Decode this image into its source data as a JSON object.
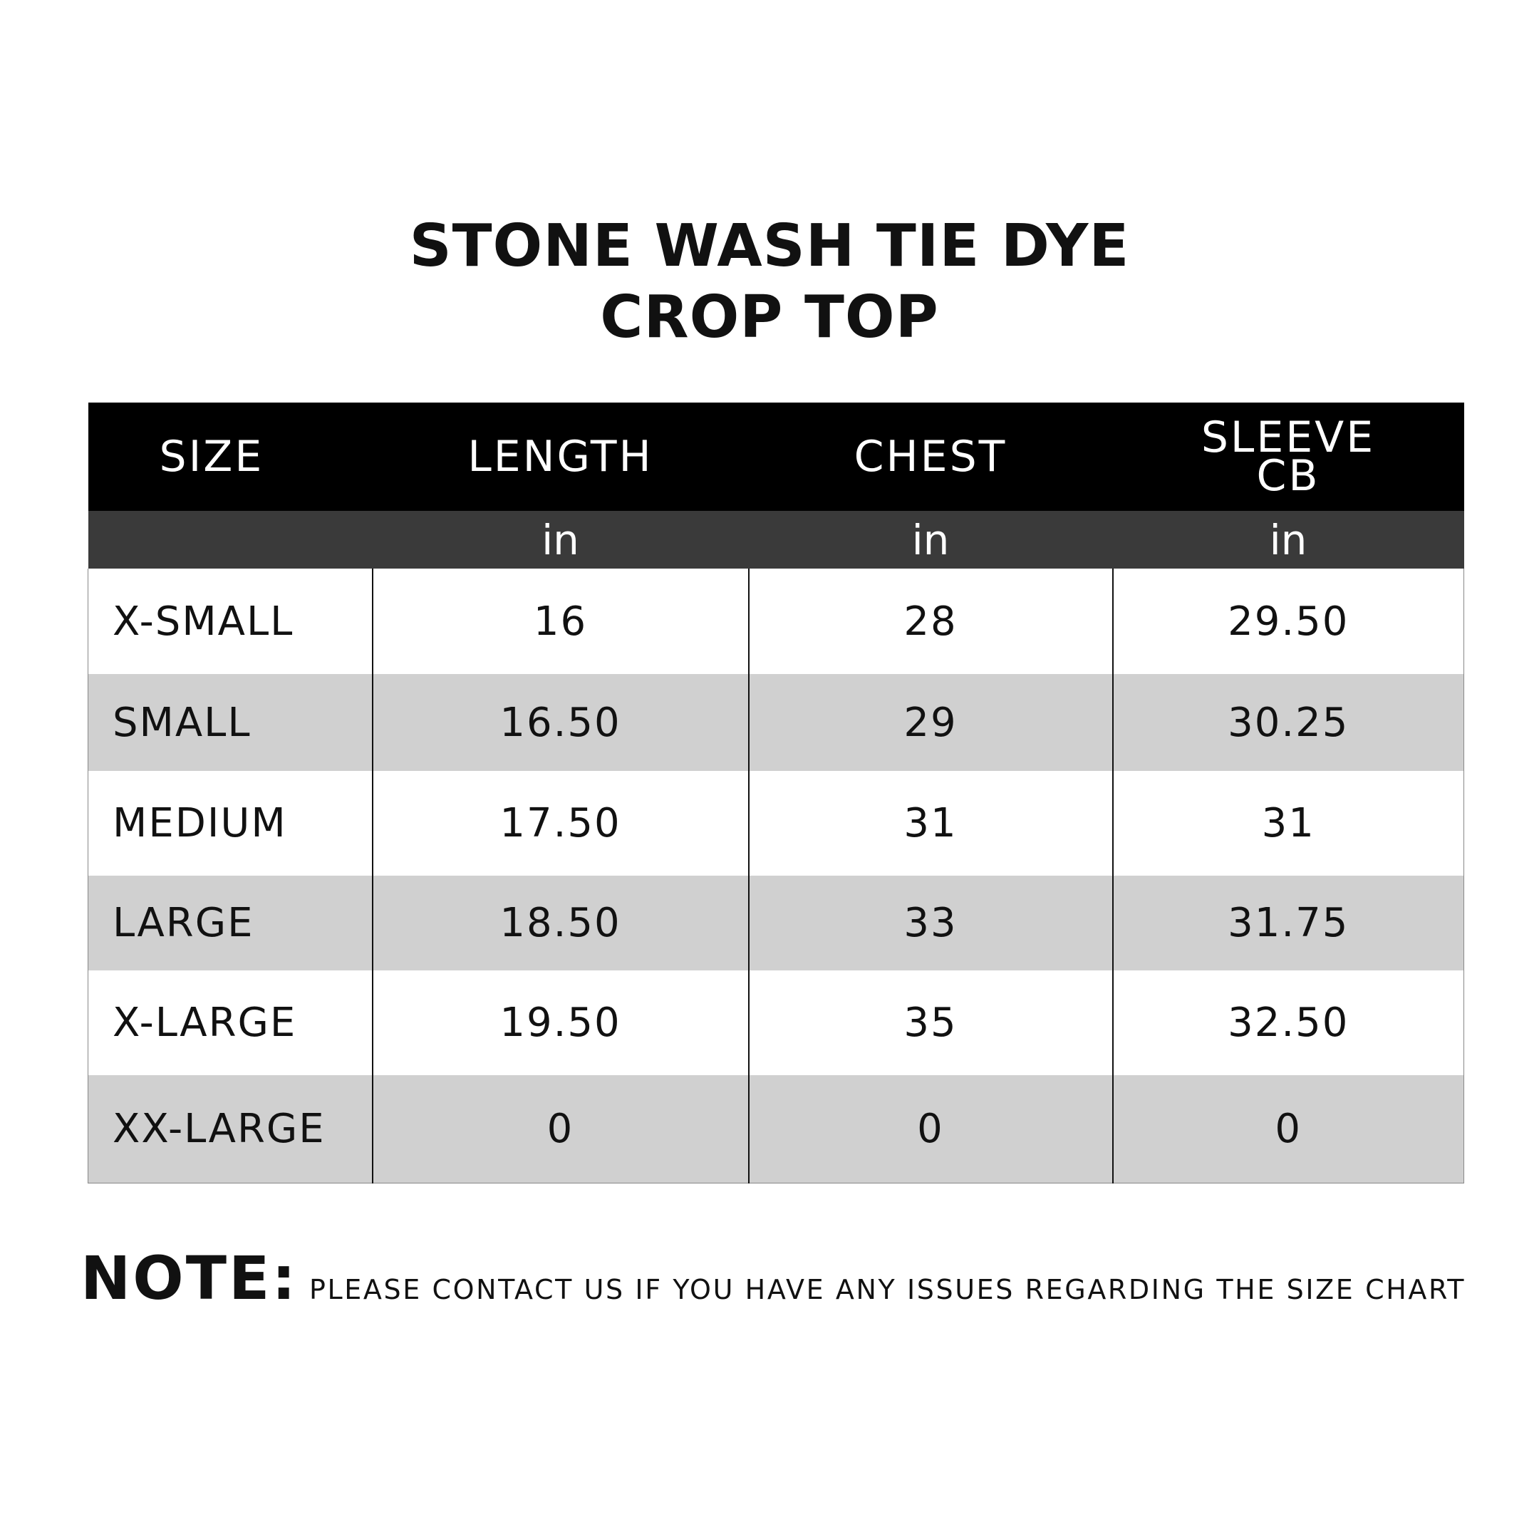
{
  "title_lines": [
    "STONE WASH TIE DYE",
    "CROP TOP"
  ],
  "table": {
    "header": [
      "SIZE",
      "LENGTH",
      "CHEST",
      "SLEEVE CB"
    ],
    "units": [
      "in",
      "in",
      "in"
    ],
    "rows": [
      [
        "X-SMALL",
        "16",
        "28",
        "29.50"
      ],
      [
        "SMALL",
        "16.50",
        "29",
        "30.25"
      ],
      [
        "MEDIUM",
        "17.50",
        "31",
        "31"
      ],
      [
        "LARGE",
        "18.50",
        "33",
        "31.75"
      ],
      [
        "X-LARGE",
        "19.50",
        "35",
        "32.50"
      ],
      [
        "XX-LARGE",
        "0",
        "0",
        "0"
      ]
    ]
  },
  "note": {
    "label": "NOTE:",
    "text": "PLEASE CONTACT US IF YOU HAVE ANY ISSUES REGARDING THE SIZE CHART"
  }
}
